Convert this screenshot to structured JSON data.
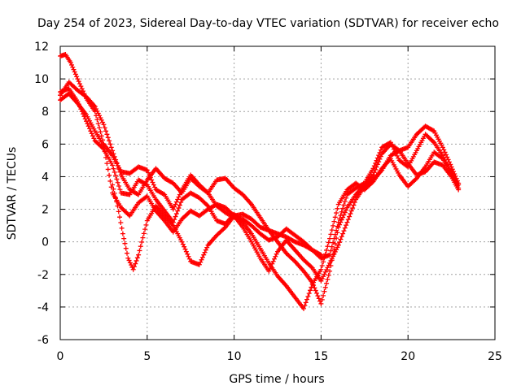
{
  "chart_data": {
    "type": "scatter",
    "title": "Day 254 of 2023, Sidereal Day-to-day VTEC variation (SDTVAR) for receiver echo",
    "xlabel": "GPS time / hours",
    "ylabel": "SDTVAR / TECUs",
    "xlim": [
      0,
      25
    ],
    "ylim": [
      -6,
      12
    ],
    "xticks": [
      "0",
      "5",
      "10",
      "15",
      "20",
      "25"
    ],
    "yticks": [
      "-6",
      "-4",
      "-2",
      "0",
      "2",
      "4",
      "6",
      "8",
      "10",
      "12"
    ],
    "marker": "plus",
    "color": "#ff0000",
    "grid": true,
    "series": [
      {
        "name": "s1",
        "x": [
          0.0,
          0.3,
          0.6,
          1.0,
          1.5,
          2.0,
          2.5,
          3.0,
          3.5,
          4.0,
          4.5,
          5.0,
          5.5,
          6.0,
          6.5,
          7.0,
          7.5,
          8.0,
          8.5,
          9.0,
          9.5,
          10.0,
          10.5,
          11.0,
          11.5,
          12.0,
          12.5,
          13.0,
          13.5,
          14.0,
          14.5,
          15.0,
          15.5,
          16.0,
          16.5,
          17.0,
          17.5,
          18.0,
          18.5,
          19.0,
          19.5,
          20.0,
          20.5,
          21.0,
          21.5,
          22.0,
          22.5,
          22.9
        ],
        "y": [
          11.4,
          11.5,
          11.0,
          10.0,
          8.8,
          8.0,
          6.0,
          5.3,
          4.3,
          4.2,
          4.6,
          4.4,
          3.2,
          2.9,
          2.0,
          3.2,
          4.1,
          3.5,
          3.0,
          2.2,
          1.8,
          1.5,
          1.4,
          1.0,
          0.5,
          0.1,
          0.3,
          0.8,
          0.4,
          0.0,
          -0.5,
          -1.0,
          -0.8,
          1.2,
          2.9,
          3.3,
          3.6,
          4.5,
          5.8,
          6.1,
          5.0,
          4.6,
          5.6,
          6.6,
          6.1,
          5.3,
          4.2,
          3.3
        ]
      },
      {
        "name": "s2",
        "x": [
          0.0,
          0.5,
          1.0,
          1.5,
          2.0,
          2.5,
          3.0,
          3.5,
          4.0,
          4.5,
          5.0,
          5.5,
          6.0,
          6.5,
          7.0,
          7.5,
          8.0,
          8.5,
          9.0,
          9.5,
          10.0,
          10.5,
          11.0,
          11.5,
          12.0,
          12.5,
          13.0,
          13.5,
          14.0,
          14.5,
          15.0,
          15.5,
          16.0,
          16.5,
          17.0,
          17.5,
          18.0,
          18.5,
          19.0,
          19.5,
          20.0,
          20.5,
          21.0,
          21.5,
          22.0,
          22.5,
          22.9
        ],
        "y": [
          9.0,
          9.8,
          9.3,
          8.9,
          8.3,
          7.2,
          5.6,
          4.1,
          3.2,
          2.9,
          3.8,
          4.5,
          3.9,
          3.6,
          3.0,
          3.9,
          3.4,
          3.0,
          3.8,
          3.9,
          3.3,
          2.9,
          2.3,
          1.5,
          0.7,
          0.0,
          -0.7,
          -1.2,
          -1.8,
          -2.5,
          -3.8,
          -1.8,
          0.9,
          2.1,
          2.9,
          3.5,
          4.1,
          5.4,
          6.0,
          5.6,
          5.8,
          6.6,
          7.1,
          6.8,
          5.8,
          4.6,
          3.6
        ]
      },
      {
        "name": "s3",
        "x": [
          0.0,
          0.5,
          1.0,
          1.5,
          2.0,
          2.5,
          3.0,
          3.5,
          4.0,
          4.5,
          5.0,
          5.5,
          6.0,
          6.5,
          7.0,
          7.5,
          8.0,
          8.5,
          9.0,
          9.5,
          10.0,
          10.5,
          11.0,
          11.5,
          12.0,
          12.5,
          13.0,
          13.5,
          14.0,
          14.5,
          15.0,
          15.5,
          16.0,
          16.5,
          17.0,
          17.5,
          18.0,
          18.5,
          19.0,
          19.5,
          20.0,
          20.5,
          21.0,
          21.5,
          22.0,
          22.5,
          22.9
        ],
        "y": [
          9.2,
          9.4,
          8.6,
          7.4,
          6.2,
          5.7,
          4.7,
          3.0,
          2.9,
          3.8,
          3.5,
          2.6,
          1.9,
          1.2,
          2.6,
          3.0,
          2.7,
          2.2,
          1.3,
          1.1,
          1.7,
          1.2,
          0.5,
          -0.4,
          -1.3,
          -2.1,
          -2.7,
          -3.4,
          -4.1,
          -2.6,
          -1.7,
          0.2,
          2.3,
          3.2,
          3.6,
          3.2,
          3.7,
          4.5,
          5.1,
          4.1,
          3.4,
          3.9,
          4.6,
          5.5,
          5.1,
          4.3,
          3.5
        ]
      },
      {
        "name": "s4",
        "x": [
          0.0,
          0.5,
          1.0,
          1.5,
          2.0,
          2.5,
          3.0,
          3.5,
          4.0,
          4.5,
          5.0,
          5.5,
          6.0,
          6.5,
          7.0,
          7.5,
          8.0,
          8.5,
          9.0,
          9.5,
          10.0,
          10.5,
          11.0,
          11.5,
          12.0,
          12.5,
          13.0,
          13.5,
          14.0,
          14.5,
          15.0,
          15.5,
          16.0,
          16.5,
          17.0,
          17.5,
          18.0,
          18.5,
          19.0,
          19.5,
          20.0,
          20.5,
          21.0,
          21.5,
          22.0,
          22.5,
          22.9
        ],
        "y": [
          8.7,
          9.1,
          8.5,
          7.8,
          6.8,
          5.9,
          3.0,
          2.1,
          1.6,
          2.4,
          2.8,
          1.9,
          1.3,
          0.6,
          1.4,
          1.9,
          1.6,
          2.0,
          2.3,
          2.1,
          1.6,
          0.9,
          0.0,
          -1.0,
          -1.8,
          -0.6,
          0.1,
          -0.5,
          -1.1,
          -1.6,
          -2.4,
          -1.3,
          -0.2,
          1.2,
          2.6,
          3.4,
          3.8,
          4.4,
          5.3,
          5.6,
          4.8,
          4.1,
          4.3,
          4.9,
          4.7,
          4.0,
          3.2
        ]
      },
      {
        "name": "s5",
        "x": [
          3.0,
          3.3,
          3.6,
          3.9,
          4.2,
          4.5,
          5.0,
          5.5,
          6.0,
          6.5,
          7.0,
          7.5,
          8.0,
          8.5,
          9.0,
          9.5,
          10.0,
          10.5,
          11.0,
          11.5,
          12.0,
          12.5,
          13.0,
          13.5,
          14.0,
          14.5,
          15.0
        ],
        "y": [
          3.5,
          2.2,
          0.5,
          -1.0,
          -1.7,
          -0.8,
          1.3,
          2.2,
          1.6,
          1.0,
          0.0,
          -1.2,
          -1.4,
          -0.2,
          0.4,
          0.9,
          1.6,
          1.7,
          1.4,
          0.9,
          0.7,
          0.5,
          0.3,
          0.0,
          -0.2,
          -0.5,
          -0.8
        ]
      }
    ]
  }
}
